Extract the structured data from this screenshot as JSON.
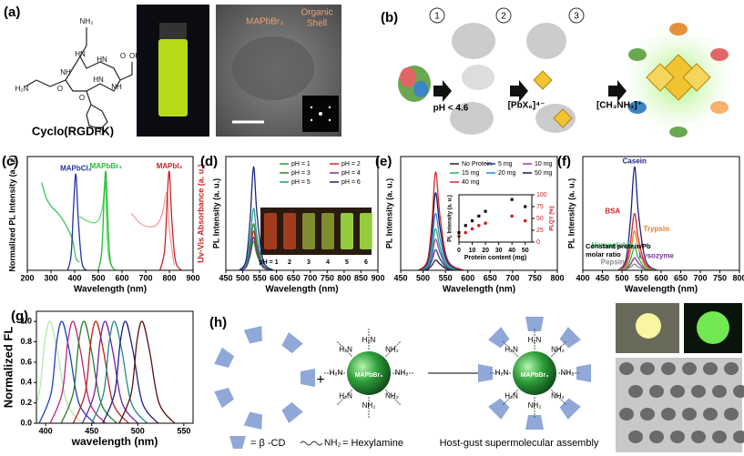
{
  "panels": {
    "a": {
      "label": "(a)",
      "molecule": "Cyclo(RGDFK)",
      "atoms": [
        "NH₂",
        "HN",
        "NH",
        "O",
        "HN",
        "O",
        "NH",
        "OH",
        "O",
        "H₂N",
        "HN",
        "O"
      ],
      "core": "MAPbBr₃",
      "shell": [
        "Organic",
        "Shell"
      ]
    },
    "b": {
      "label": "(b)",
      "steps": [
        "1",
        "2",
        "3"
      ],
      "reagents": [
        "pH < 4.6",
        "[PbX₆]⁴⁻",
        "[CH₃NH₃]⁺"
      ]
    },
    "h": {
      "label": "(h)",
      "core": "MAPbBr₃",
      "amine": "NH₂",
      "amine_rev": "H₂N",
      "cd_key": "= β -CD",
      "hexylamine_key": "= Hexylamine",
      "caption": "Host-gust supermolecular assembly"
    }
  },
  "chart_data": [
    {
      "type": "line",
      "label": "(c)",
      "xlabel": "Wavelength (nm)",
      "ylabel": "Normalized PL Intensity (a. u.)",
      "y2label": "Uv-Vis Absorbance (a. u.)",
      "xlim": [
        200,
        900
      ],
      "xticks": [
        200,
        300,
        400,
        500,
        600,
        700,
        800,
        900
      ],
      "ylim": [
        0,
        1.1
      ],
      "series": [
        {
          "color": "#35c759",
          "x": [
            260,
            280,
            300,
            330,
            360,
            390,
            405,
            420
          ],
          "values": [
            0.85,
            0.7,
            0.62,
            0.55,
            0.45,
            0.3,
            0.12,
            0.08
          ]
        },
        {
          "name": "MAPbCl₃",
          "color": "#2233aa",
          "x": [
            370,
            385,
            395,
            405,
            415,
            430,
            450
          ],
          "values": [
            0,
            0.15,
            0.6,
            0.93,
            0.5,
            0.08,
            0
          ]
        },
        {
          "color": "#66dd66",
          "x": [
            420,
            450,
            480,
            505,
            520,
            530,
            540,
            560
          ],
          "values": [
            0.52,
            0.48,
            0.46,
            0.5,
            0.65,
            0.85,
            0.2,
            0.02
          ]
        },
        {
          "name": "MAPbBr₃",
          "color": "#22bb33",
          "x": [
            500,
            515,
            525,
            532,
            540,
            550,
            570
          ],
          "values": [
            0,
            0.2,
            0.75,
            0.95,
            0.5,
            0.1,
            0
          ]
        },
        {
          "color": "#f2a0a0",
          "x": [
            640,
            680,
            720,
            750,
            770,
            790,
            800,
            820
          ],
          "values": [
            0.55,
            0.45,
            0.42,
            0.45,
            0.55,
            0.75,
            0.4,
            0.05
          ]
        },
        {
          "name": "MAPbI₃",
          "color": "#cc2222",
          "x": [
            760,
            780,
            792,
            800,
            810,
            825,
            850
          ],
          "values": [
            0,
            0.2,
            0.75,
            0.95,
            0.5,
            0.1,
            0
          ]
        }
      ]
    },
    {
      "type": "line",
      "label": "(d)",
      "xlabel": "Wavelength (nm)",
      "ylabel": "PL Intensity (a. u.)",
      "legend": "top-right",
      "xlim": [
        450,
        900
      ],
      "xticks": [
        450,
        500,
        550,
        600,
        650,
        700,
        750,
        800,
        850,
        900
      ],
      "ylim": [
        0,
        1.1
      ],
      "inset_labels": [
        "pH = 1",
        "2",
        "3",
        "4",
        "5",
        "6"
      ],
      "series": [
        {
          "name": "pH = 1",
          "color": "#2ca02c",
          "x": [
            490,
            510,
            522,
            532,
            542,
            560,
            590
          ],
          "values": [
            0,
            0.03,
            0.14,
            0.28,
            0.15,
            0.03,
            0
          ]
        },
        {
          "name": "pH = 2",
          "color": "#d62728",
          "x": [
            490,
            510,
            522,
            532,
            542,
            560,
            590
          ],
          "values": [
            0,
            0.04,
            0.19,
            0.38,
            0.21,
            0.04,
            0
          ]
        },
        {
          "name": "pH = 3",
          "color": "#3a7d3a",
          "x": [
            490,
            510,
            522,
            532,
            542,
            560,
            590
          ],
          "values": [
            0,
            0.05,
            0.23,
            0.45,
            0.25,
            0.05,
            0
          ]
        },
        {
          "name": "pH = 4",
          "color": "#7b3294",
          "x": [
            490,
            510,
            522,
            532,
            542,
            560,
            590
          ],
          "values": [
            0,
            0.03,
            0.16,
            0.32,
            0.18,
            0.03,
            0
          ]
        },
        {
          "name": "pH = 5",
          "color": "#1f9e89",
          "x": [
            490,
            510,
            522,
            532,
            542,
            560,
            590
          ],
          "values": [
            0,
            0.06,
            0.3,
            0.6,
            0.33,
            0.06,
            0
          ]
        },
        {
          "name": "pH = 6",
          "color": "#1a237e",
          "x": [
            490,
            510,
            522,
            532,
            542,
            560,
            590
          ],
          "values": [
            0,
            0.1,
            0.5,
            1,
            0.55,
            0.1,
            0
          ]
        }
      ]
    },
    {
      "type": "line",
      "label": "(e)",
      "xlabel": "Wavelength (nm)",
      "ylabel": "PL Intensity (a. u.)",
      "legend": "top-right",
      "xlim": [
        450,
        800
      ],
      "xticks": [
        450,
        500,
        550,
        600,
        650,
        700,
        750,
        800
      ],
      "ylim": [
        0,
        1.1
      ],
      "series": [
        {
          "name": "No Protein",
          "color": "#222222",
          "x": [
            490,
            510,
            520,
            528,
            538,
            555,
            590
          ],
          "values": [
            0,
            0.01,
            0.05,
            0.1,
            0.06,
            0.01,
            0
          ]
        },
        {
          "name": "5 mg",
          "color": "#1f3a93",
          "x": [
            490,
            510,
            520,
            528,
            538,
            555,
            590
          ],
          "values": [
            0,
            0.02,
            0.1,
            0.2,
            0.11,
            0.02,
            0
          ]
        },
        {
          "name": "10 mg",
          "color": "#8e44ad",
          "x": [
            490,
            510,
            520,
            528,
            538,
            555,
            590
          ],
          "values": [
            0,
            0.03,
            0.15,
            0.3,
            0.17,
            0.03,
            0
          ]
        },
        {
          "name": "15 mg",
          "color": "#27ae60",
          "x": [
            490,
            510,
            520,
            528,
            538,
            555,
            590
          ],
          "values": [
            0,
            0.04,
            0.2,
            0.4,
            0.22,
            0.04,
            0
          ]
        },
        {
          "name": "20 mg",
          "color": "#2e86de",
          "x": [
            490,
            510,
            520,
            528,
            538,
            555,
            590
          ],
          "values": [
            0,
            0.06,
            0.28,
            0.55,
            0.3,
            0.06,
            0
          ]
        },
        {
          "name": "50 mg",
          "color": "#0b1a66",
          "x": [
            490,
            510,
            520,
            528,
            538,
            555,
            590
          ],
          "values": [
            0,
            0.08,
            0.38,
            0.75,
            0.41,
            0.08,
            0
          ]
        },
        {
          "name": "40 mg",
          "color": "#d62728",
          "x": [
            490,
            510,
            520,
            528,
            538,
            555,
            590
          ],
          "values": [
            0,
            0.1,
            0.48,
            0.95,
            0.52,
            0.1,
            0
          ]
        }
      ]
    },
    {
      "type": "scatter",
      "xlabel": "Protein content (mg)",
      "ylabel": "PL Intensity (a. u.)",
      "y2label": "PLQY (%)",
      "xlim": [
        0,
        55
      ],
      "xticks": [
        0,
        10,
        20,
        30,
        40,
        50
      ],
      "ylim": [
        0,
        1
      ],
      "y2lim": [
        0,
        100
      ],
      "y2ticks": [
        0,
        25,
        50,
        75,
        100
      ],
      "series": [
        {
          "color": "#111111",
          "x": [
            0,
            5,
            10,
            15,
            20,
            40,
            50
          ],
          "values": [
            0.2,
            0.35,
            0.45,
            0.55,
            0.65,
            0.9,
            0.75
          ]
        },
        {
          "color": "#cc2222",
          "axis": "y2",
          "x": [
            0,
            5,
            10,
            15,
            20,
            40,
            50
          ],
          "values": [
            12,
            20,
            28,
            35,
            40,
            55,
            45
          ]
        }
      ]
    },
    {
      "type": "line",
      "label": "(f)",
      "xlabel": "Wavelength (nm)",
      "ylabel": "PL Intensity (a. u.)",
      "xlim": [
        400,
        800
      ],
      "xticks": [
        400,
        450,
        500,
        550,
        600,
        650,
        700,
        750,
        800
      ],
      "ylim": [
        0,
        1.1
      ],
      "annotation": [
        "Constant protein/Pb",
        "molar ratio"
      ],
      "series": [
        {
          "name": "Casein",
          "color": "#1a237e",
          "x": [
            490,
            510,
            522,
            532,
            542,
            560,
            590
          ],
          "values": [
            0,
            0.1,
            0.5,
            1,
            0.55,
            0.1,
            0
          ]
        },
        {
          "name": "BSA",
          "color": "#d62728",
          "x": [
            490,
            510,
            522,
            532,
            542,
            560,
            590
          ],
          "values": [
            0,
            0.06,
            0.28,
            0.55,
            0.3,
            0.06,
            0
          ]
        },
        {
          "name": "Trypsin",
          "color": "#e67e22",
          "x": [
            490,
            510,
            522,
            532,
            542,
            560,
            590
          ],
          "values": [
            0,
            0.04,
            0.19,
            0.38,
            0.21,
            0.04,
            0
          ]
        },
        {
          "name": "Hemoglobin",
          "color": "#27ae60",
          "x": [
            490,
            510,
            522,
            532,
            542,
            560,
            590
          ],
          "values": [
            0,
            0.02,
            0.11,
            0.22,
            0.12,
            0.02,
            0
          ]
        },
        {
          "name": "Lysozyme",
          "color": "#7b3294",
          "x": [
            490,
            510,
            522,
            532,
            542,
            560,
            590
          ],
          "values": [
            0,
            0.01,
            0.06,
            0.12,
            0.07,
            0.01,
            0
          ]
        },
        {
          "name": "Pepsin",
          "color": "#888888",
          "x": [
            490,
            510,
            522,
            532,
            542,
            560,
            590
          ],
          "values": [
            0,
            0.01,
            0.03,
            0.06,
            0.03,
            0.01,
            0
          ]
        }
      ]
    },
    {
      "type": "line",
      "label": "(g)",
      "xlabel": "wavelength (nm)",
      "ylabel": "Normalized FL",
      "xlim": [
        390,
        560
      ],
      "xticks": [
        400,
        450,
        500,
        550
      ],
      "ylim": [
        0,
        1.1
      ],
      "yticks": [
        {
          "value": 0,
          "label": "0.0"
        },
        0.2,
        0.4,
        0.6,
        0.8,
        {
          "value": 1,
          "label": "1.0"
        }
      ],
      "series": [
        {
          "color": "#b5e6b5",
          "x": [
            380,
            393,
            399,
            405,
            413,
            423,
            440
          ],
          "values": [
            0,
            0.3,
            0.8,
            1,
            0.7,
            0.2,
            0
          ]
        },
        {
          "color": "#1f3fbf",
          "x": [
            393,
            406,
            412,
            418,
            426,
            436,
            453
          ],
          "values": [
            0,
            0.3,
            0.8,
            1,
            0.7,
            0.2,
            0
          ]
        },
        {
          "color": "#c0267a",
          "x": [
            405,
            418,
            424,
            430,
            438,
            448,
            465
          ],
          "values": [
            0,
            0.3,
            0.8,
            1,
            0.7,
            0.2,
            0
          ]
        },
        {
          "color": "#2a7d2a",
          "x": [
            417,
            430,
            436,
            442,
            450,
            460,
            477
          ],
          "values": [
            0,
            0.3,
            0.8,
            1,
            0.7,
            0.2,
            0
          ]
        },
        {
          "color": "#c21d1d",
          "x": [
            430,
            443,
            449,
            455,
            463,
            473,
            490
          ],
          "values": [
            0,
            0.3,
            0.8,
            1,
            0.7,
            0.2,
            0
          ]
        },
        {
          "color": "#7a1fa2",
          "x": [
            440,
            453,
            459,
            465,
            473,
            483,
            500
          ],
          "values": [
            0,
            0.3,
            0.8,
            1,
            0.7,
            0.2,
            0
          ]
        },
        {
          "color": "#1f8a8a",
          "x": [
            450,
            463,
            469,
            475,
            483,
            493,
            510
          ],
          "values": [
            0,
            0.3,
            0.8,
            1,
            0.7,
            0.2,
            0
          ]
        },
        {
          "color": "#1b1f8a",
          "x": [
            462,
            475,
            481,
            487,
            495,
            505,
            522
          ],
          "values": [
            0,
            0.3,
            0.8,
            1,
            0.7,
            0.2,
            0
          ]
        },
        {
          "color": "#5a1010",
          "x": [
            480,
            493,
            499,
            505,
            513,
            523,
            540
          ],
          "values": [
            0,
            0.3,
            0.8,
            1,
            0.7,
            0.2,
            0
          ]
        }
      ]
    }
  ]
}
